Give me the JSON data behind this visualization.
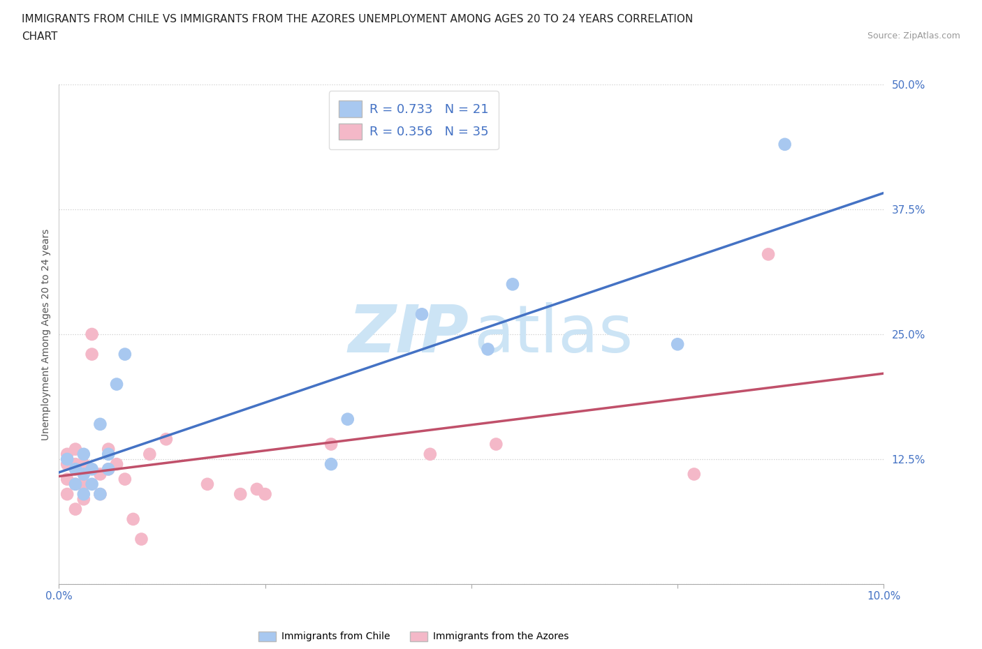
{
  "title_line1": "IMMIGRANTS FROM CHILE VS IMMIGRANTS FROM THE AZORES UNEMPLOYMENT AMONG AGES 20 TO 24 YEARS CORRELATION",
  "title_line2": "CHART",
  "source_text": "Source: ZipAtlas.com",
  "ylabel": "Unemployment Among Ages 20 to 24 years",
  "xlabel_chile": "Immigrants from Chile",
  "xlabel_azores": "Immigrants from the Azores",
  "xlim": [
    0.0,
    0.1
  ],
  "ylim": [
    0.0,
    0.5
  ],
  "yticks": [
    0.0,
    0.125,
    0.25,
    0.375,
    0.5
  ],
  "ytick_labels": [
    "",
    "12.5%",
    "25.0%",
    "37.5%",
    "50.0%"
  ],
  "xticks": [
    0.0,
    0.025,
    0.05,
    0.075,
    0.1
  ],
  "xtick_labels": [
    "0.0%",
    "",
    "",
    "",
    "10.0%"
  ],
  "chile_R": 0.733,
  "chile_N": 21,
  "azores_R": 0.356,
  "azores_N": 35,
  "chile_color": "#a8c8f0",
  "chile_line_color": "#4472c4",
  "azores_color": "#f4b8c8",
  "azores_line_color": "#c0506a",
  "background_color": "#ffffff",
  "grid_color": "#cccccc",
  "watermark_color": "#cce4f5",
  "chile_x": [
    0.001,
    0.002,
    0.002,
    0.003,
    0.003,
    0.003,
    0.004,
    0.004,
    0.005,
    0.005,
    0.006,
    0.006,
    0.007,
    0.008,
    0.033,
    0.035,
    0.044,
    0.052,
    0.055,
    0.075,
    0.088
  ],
  "chile_y": [
    0.125,
    0.115,
    0.1,
    0.09,
    0.11,
    0.13,
    0.1,
    0.115,
    0.09,
    0.16,
    0.115,
    0.13,
    0.2,
    0.23,
    0.12,
    0.165,
    0.27,
    0.235,
    0.3,
    0.24,
    0.44
  ],
  "azores_x": [
    0.001,
    0.001,
    0.001,
    0.001,
    0.002,
    0.002,
    0.002,
    0.002,
    0.002,
    0.003,
    0.003,
    0.003,
    0.003,
    0.003,
    0.004,
    0.004,
    0.005,
    0.005,
    0.006,
    0.006,
    0.007,
    0.008,
    0.009,
    0.01,
    0.011,
    0.013,
    0.018,
    0.022,
    0.024,
    0.025,
    0.033,
    0.045,
    0.053,
    0.077,
    0.086
  ],
  "azores_y": [
    0.12,
    0.13,
    0.105,
    0.09,
    0.135,
    0.12,
    0.1,
    0.115,
    0.075,
    0.115,
    0.115,
    0.12,
    0.1,
    0.085,
    0.25,
    0.23,
    0.11,
    0.09,
    0.135,
    0.115,
    0.12,
    0.105,
    0.065,
    0.045,
    0.13,
    0.145,
    0.1,
    0.09,
    0.095,
    0.09,
    0.14,
    0.13,
    0.14,
    0.11,
    0.33
  ],
  "title_fontsize": 11,
  "source_fontsize": 9,
  "axis_label_fontsize": 10,
  "tick_fontsize": 11,
  "legend_fontsize": 13
}
